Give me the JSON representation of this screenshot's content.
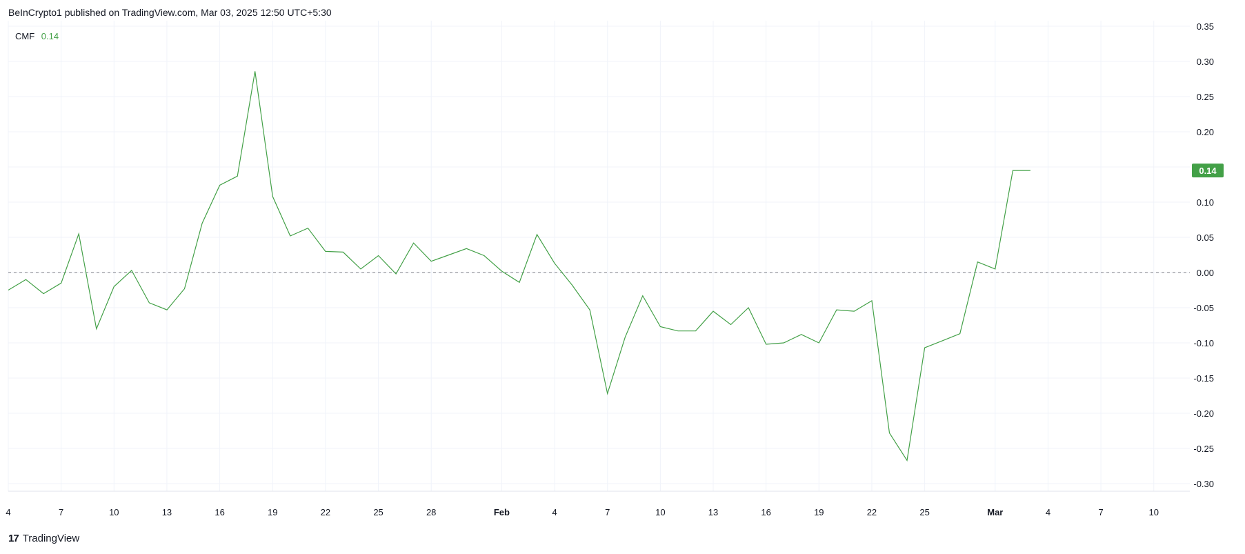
{
  "header": {
    "published": "BeInCrypto1 published on TradingView.com, Mar 03, 2025 12:50 UTC+5:30"
  },
  "legend": {
    "name": "CMF",
    "value": "0.14"
  },
  "footer": {
    "brand": "TradingView",
    "logo_glyph": "17"
  },
  "colors": {
    "line": "#43a047",
    "badge": "#43a047",
    "grid": "#f0f3fa",
    "zero": "#787b86"
  },
  "chart_data": {
    "type": "line",
    "series": [
      {
        "name": "CMF",
        "values": [
          -0.025,
          -0.01,
          -0.03,
          -0.015,
          0.055,
          -0.08,
          -0.02,
          0.003,
          -0.043,
          -0.053,
          -0.023,
          0.07,
          0.124,
          0.137,
          0.286,
          0.108,
          0.052,
          0.063,
          0.03,
          0.029,
          0.005,
          0.024,
          -0.002,
          0.042,
          0.016,
          0.025,
          0.034,
          0.024,
          0.002,
          -0.014,
          0.054,
          0.013,
          -0.018,
          -0.053,
          -0.172,
          -0.092,
          -0.033,
          -0.077,
          -0.083,
          -0.083,
          -0.055,
          -0.074,
          -0.05,
          -0.102,
          -0.1,
          -0.088,
          -0.1,
          -0.053,
          -0.055,
          -0.04,
          -0.228,
          -0.267,
          -0.107,
          -0.097,
          -0.087,
          0.015,
          0.005,
          0.145,
          0.145
        ]
      }
    ],
    "y_ticks": [
      "0.35",
      "0.30",
      "0.25",
      "0.20",
      "0.15",
      "0.10",
      "0.05",
      "0.00",
      "-0.05",
      "-0.10",
      "-0.15",
      "-0.20",
      "-0.25",
      "-0.30"
    ],
    "x_ticks": [
      {
        "label": "4",
        "index": 0
      },
      {
        "label": "7",
        "index": 3
      },
      {
        "label": "10",
        "index": 6
      },
      {
        "label": "13",
        "index": 9
      },
      {
        "label": "16",
        "index": 12
      },
      {
        "label": "19",
        "index": 15
      },
      {
        "label": "22",
        "index": 18
      },
      {
        "label": "25",
        "index": 21
      },
      {
        "label": "28",
        "index": 24
      },
      {
        "label": "Feb",
        "index": 28,
        "bold": true
      },
      {
        "label": "4",
        "index": 31
      },
      {
        "label": "7",
        "index": 34
      },
      {
        "label": "10",
        "index": 37
      },
      {
        "label": "13",
        "index": 40
      },
      {
        "label": "16",
        "index": 43
      },
      {
        "label": "19",
        "index": 46
      },
      {
        "label": "22",
        "index": 49
      },
      {
        "label": "25",
        "index": 52
      },
      {
        "label": "Mar",
        "index": 56,
        "bold": true
      },
      {
        "label": "4",
        "index": 59
      },
      {
        "label": "7",
        "index": 62
      },
      {
        "label": "10",
        "index": 65
      }
    ],
    "ylim": [
      -0.3,
      0.35
    ],
    "zero_line": true,
    "grid": true,
    "last_value_label": "0.14"
  }
}
